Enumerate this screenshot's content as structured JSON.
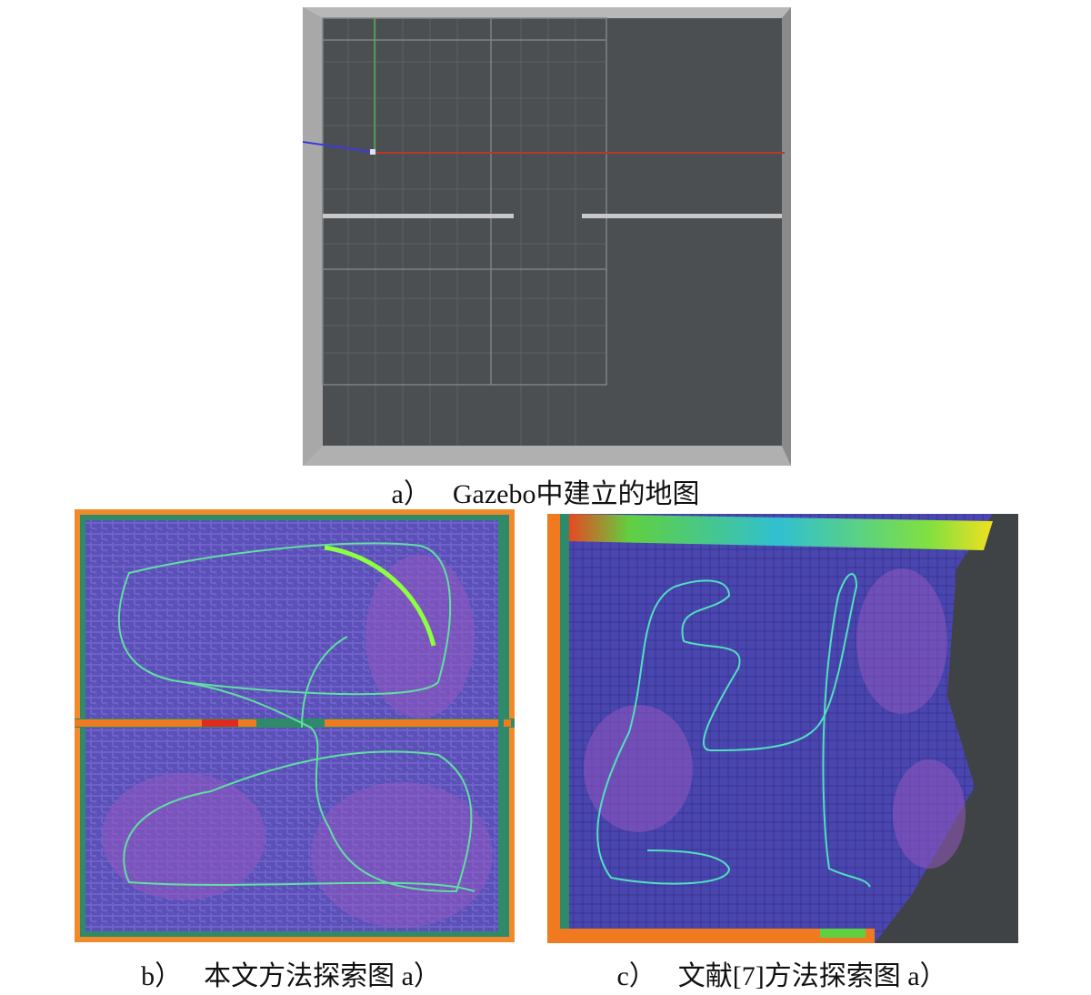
{
  "figure": {
    "panels": [
      {
        "label": "a）",
        "caption": "Gazebo中建立的地图"
      },
      {
        "label": "b）",
        "caption": "本文方法探索图 a）"
      },
      {
        "label": "c）",
        "caption": "文献[7]方法探索图 a）"
      }
    ]
  }
}
